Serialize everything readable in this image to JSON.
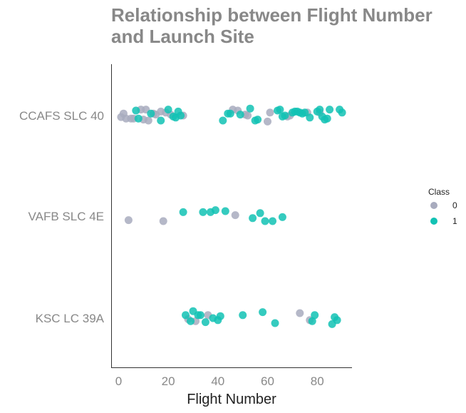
{
  "chart_data": {
    "type": "scatter",
    "title": "Relationship between Flight Number and Launch Site",
    "xlabel": "Flight Number",
    "ylabel": "",
    "xlim": [
      -3,
      94
    ],
    "xticks": [
      0,
      20,
      40,
      60,
      80
    ],
    "categories": [
      "CCAFS SLC 40",
      "VAFB SLC 4E",
      "KSC LC 39A"
    ],
    "grid": false,
    "legend": {
      "title": "Class",
      "position": "right",
      "entries": [
        {
          "label": "0",
          "color": "#a8abbe"
        },
        {
          "label": "1",
          "color": "#12c2b4"
        }
      ]
    },
    "series": [
      {
        "name": "0",
        "color": "#a8abbe",
        "points": [
          {
            "x": 1,
            "y": "CCAFS SLC 40",
            "jitter": 0.03
          },
          {
            "x": 2,
            "y": "CCAFS SLC 40",
            "jitter": -0.04
          },
          {
            "x": 3,
            "y": "CCAFS SLC 40",
            "jitter": 0.06
          },
          {
            "x": 5,
            "y": "CCAFS SLC 40",
            "jitter": 0.06
          },
          {
            "x": 6,
            "y": "CCAFS SLC 40",
            "jitter": 0.06
          },
          {
            "x": 9,
            "y": "CCAFS SLC 40",
            "jitter": -0.12
          },
          {
            "x": 10,
            "y": "CCAFS SLC 40",
            "jitter": 0.08
          },
          {
            "x": 11,
            "y": "CCAFS SLC 40",
            "jitter": -0.12
          },
          {
            "x": 12,
            "y": "CCAFS SLC 40",
            "jitter": 0.1
          },
          {
            "x": 14,
            "y": "CCAFS SLC 40",
            "jitter": -0.04
          },
          {
            "x": 15,
            "y": "CCAFS SLC 40",
            "jitter": -0.02
          },
          {
            "x": 17,
            "y": "CCAFS SLC 40",
            "jitter": -0.08
          },
          {
            "x": 19,
            "y": "CCAFS SLC 40",
            "jitter": -0.06
          },
          {
            "x": 21,
            "y": "CCAFS SLC 40",
            "jitter": -0.02
          },
          {
            "x": 26,
            "y": "CCAFS SLC 40",
            "jitter": 0.0
          },
          {
            "x": 46,
            "y": "CCAFS SLC 40",
            "jitter": -0.12
          },
          {
            "x": 48,
            "y": "CCAFS SLC 40",
            "jitter": -0.1
          },
          {
            "x": 51,
            "y": "CCAFS SLC 40",
            "jitter": -0.02
          },
          {
            "x": 52,
            "y": "CCAFS SLC 40",
            "jitter": 0.0
          },
          {
            "x": 60,
            "y": "CCAFS SLC 40",
            "jitter": 0.12
          },
          {
            "x": 61,
            "y": "CCAFS SLC 40",
            "jitter": -0.06
          },
          {
            "x": 68,
            "y": "CCAFS SLC 40",
            "jitter": 0.02
          },
          {
            "x": 69,
            "y": "CCAFS SLC 40",
            "jitter": 0.0
          },
          {
            "x": 76,
            "y": "CCAFS SLC 40",
            "jitter": -0.06
          },
          {
            "x": 81,
            "y": "CCAFS SLC 40",
            "jitter": -0.06
          },
          {
            "x": 4,
            "y": "VAFB SLC 4E",
            "jitter": 0.08
          },
          {
            "x": 18,
            "y": "VAFB SLC 4E",
            "jitter": 0.1
          },
          {
            "x": 47,
            "y": "VAFB SLC 4E",
            "jitter": -0.02
          },
          {
            "x": 73,
            "y": "KSC LC 39A",
            "jitter": -0.1
          },
          {
            "x": 28,
            "y": "KSC LC 39A",
            "jitter": 0.02
          },
          {
            "x": 31,
            "y": "KSC LC 39A",
            "jitter": 0.06
          },
          {
            "x": 36,
            "y": "KSC LC 39A",
            "jitter": -0.06
          },
          {
            "x": 77,
            "y": "KSC LC 39A",
            "jitter": 0.04
          }
        ]
      },
      {
        "name": "1",
        "color": "#12c2b4",
        "points": [
          {
            "x": 7,
            "y": "CCAFS SLC 40",
            "jitter": -0.1
          },
          {
            "x": 8,
            "y": "CCAFS SLC 40",
            "jitter": 0.06
          },
          {
            "x": 13,
            "y": "CCAFS SLC 40",
            "jitter": -0.04
          },
          {
            "x": 17,
            "y": "CCAFS SLC 40",
            "jitter": 0.1
          },
          {
            "x": 20,
            "y": "CCAFS SLC 40",
            "jitter": -0.12
          },
          {
            "x": 22,
            "y": "CCAFS SLC 40",
            "jitter": 0.02
          },
          {
            "x": 23,
            "y": "CCAFS SLC 40",
            "jitter": 0.04
          },
          {
            "x": 24,
            "y": "CCAFS SLC 40",
            "jitter": -0.08
          },
          {
            "x": 25,
            "y": "CCAFS SLC 40",
            "jitter": 0.0
          },
          {
            "x": 42,
            "y": "CCAFS SLC 40",
            "jitter": 0.1
          },
          {
            "x": 44,
            "y": "CCAFS SLC 40",
            "jitter": -0.04
          },
          {
            "x": 45,
            "y": "CCAFS SLC 40",
            "jitter": -0.04
          },
          {
            "x": 49,
            "y": "CCAFS SLC 40",
            "jitter": -0.02
          },
          {
            "x": 53,
            "y": "CCAFS SLC 40",
            "jitter": -0.14
          },
          {
            "x": 55,
            "y": "CCAFS SLC 40",
            "jitter": 0.1
          },
          {
            "x": 56,
            "y": "CCAFS SLC 40",
            "jitter": 0.08
          },
          {
            "x": 64,
            "y": "CCAFS SLC 40",
            "jitter": -0.1
          },
          {
            "x": 65,
            "y": "CCAFS SLC 40",
            "jitter": -0.12
          },
          {
            "x": 66,
            "y": "CCAFS SLC 40",
            "jitter": 0.02
          },
          {
            "x": 67,
            "y": "CCAFS SLC 40",
            "jitter": 0.0
          },
          {
            "x": 70,
            "y": "CCAFS SLC 40",
            "jitter": -0.06
          },
          {
            "x": 71,
            "y": "CCAFS SLC 40",
            "jitter": -0.08
          },
          {
            "x": 72,
            "y": "CCAFS SLC 40",
            "jitter": -0.08
          },
          {
            "x": 73,
            "y": "CCAFS SLC 40",
            "jitter": -0.06
          },
          {
            "x": 74,
            "y": "CCAFS SLC 40",
            "jitter": -0.04
          },
          {
            "x": 75,
            "y": "CCAFS SLC 40",
            "jitter": -0.06
          },
          {
            "x": 77,
            "y": "CCAFS SLC 40",
            "jitter": 0.04
          },
          {
            "x": 80,
            "y": "CCAFS SLC 40",
            "jitter": -0.08
          },
          {
            "x": 81,
            "y": "CCAFS SLC 40",
            "jitter": -0.12
          },
          {
            "x": 82,
            "y": "CCAFS SLC 40",
            "jitter": 0.02
          },
          {
            "x": 83,
            "y": "CCAFS SLC 40",
            "jitter": 0.08
          },
          {
            "x": 84,
            "y": "CCAFS SLC 40",
            "jitter": 0.06
          },
          {
            "x": 85,
            "y": "CCAFS SLC 40",
            "jitter": -0.12
          },
          {
            "x": 89,
            "y": "CCAFS SLC 40",
            "jitter": -0.12
          },
          {
            "x": 90,
            "y": "CCAFS SLC 40",
            "jitter": -0.06
          },
          {
            "x": 26,
            "y": "VAFB SLC 4E",
            "jitter": -0.08
          },
          {
            "x": 34,
            "y": "VAFB SLC 4E",
            "jitter": -0.08
          },
          {
            "x": 37,
            "y": "VAFB SLC 4E",
            "jitter": -0.08
          },
          {
            "x": 39,
            "y": "VAFB SLC 4E",
            "jitter": -0.12
          },
          {
            "x": 43,
            "y": "VAFB SLC 4E",
            "jitter": -0.1
          },
          {
            "x": 54,
            "y": "VAFB SLC 4E",
            "jitter": 0.04
          },
          {
            "x": 57,
            "y": "VAFB SLC 4E",
            "jitter": -0.06
          },
          {
            "x": 59,
            "y": "VAFB SLC 4E",
            "jitter": 0.1
          },
          {
            "x": 62,
            "y": "VAFB SLC 4E",
            "jitter": 0.1
          },
          {
            "x": 66,
            "y": "VAFB SLC 4E",
            "jitter": 0.02
          },
          {
            "x": 27,
            "y": "KSC LC 39A",
            "jitter": -0.06
          },
          {
            "x": 29,
            "y": "KSC LC 39A",
            "jitter": 0.06
          },
          {
            "x": 30,
            "y": "KSC LC 39A",
            "jitter": -0.14
          },
          {
            "x": 32,
            "y": "KSC LC 39A",
            "jitter": -0.06
          },
          {
            "x": 33,
            "y": "KSC LC 39A",
            "jitter": -0.06
          },
          {
            "x": 35,
            "y": "KSC LC 39A",
            "jitter": 0.08
          },
          {
            "x": 38,
            "y": "KSC LC 39A",
            "jitter": 0.0
          },
          {
            "x": 40,
            "y": "KSC LC 39A",
            "jitter": 0.04
          },
          {
            "x": 41,
            "y": "KSC LC 39A",
            "jitter": -0.04
          },
          {
            "x": 50,
            "y": "KSC LC 39A",
            "jitter": -0.06
          },
          {
            "x": 58,
            "y": "KSC LC 39A",
            "jitter": -0.12
          },
          {
            "x": 63,
            "y": "KSC LC 39A",
            "jitter": 0.1
          },
          {
            "x": 78,
            "y": "KSC LC 39A",
            "jitter": 0.06
          },
          {
            "x": 79,
            "y": "KSC LC 39A",
            "jitter": -0.06
          },
          {
            "x": 86,
            "y": "KSC LC 39A",
            "jitter": 0.12
          },
          {
            "x": 87,
            "y": "KSC LC 39A",
            "jitter": -0.02
          },
          {
            "x": 88,
            "y": "KSC LC 39A",
            "jitter": 0.04
          }
        ]
      }
    ]
  }
}
